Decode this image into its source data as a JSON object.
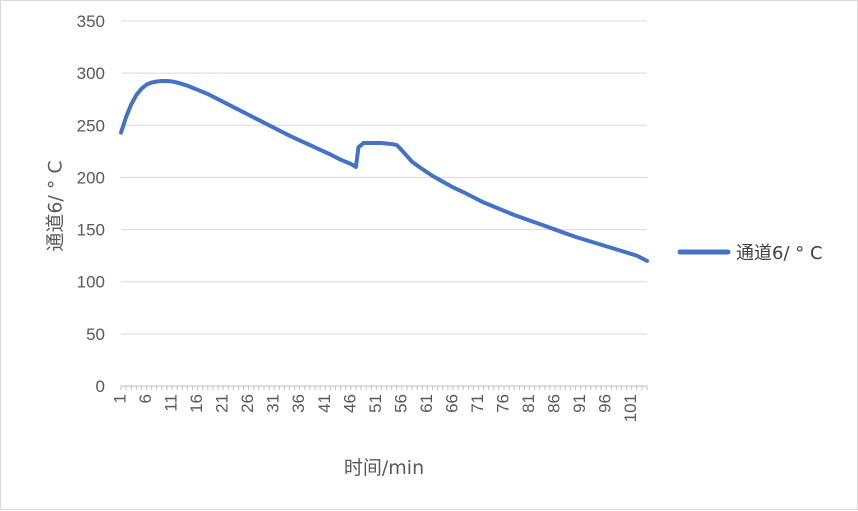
{
  "chart_data": {
    "type": "line",
    "xlabel": "时间/min",
    "ylabel": "通道6/ ° C",
    "ylim": [
      0,
      350
    ],
    "yticks": [
      0,
      50,
      100,
      150,
      200,
      250,
      300,
      350
    ],
    "xlim": [
      1,
      104
    ],
    "xticks": [
      1,
      6,
      11,
      16,
      21,
      26,
      31,
      36,
      41,
      46,
      51,
      56,
      61,
      66,
      71,
      76,
      81,
      86,
      91,
      96,
      101
    ],
    "grid": true,
    "legend_position": "right",
    "series": [
      {
        "name": "通道6/ ° C",
        "color": "#4472c4",
        "points": [
          [
            1,
            243
          ],
          [
            2,
            258
          ],
          [
            3,
            270
          ],
          [
            4,
            279
          ],
          [
            5,
            285
          ],
          [
            6,
            289
          ],
          [
            7,
            291
          ],
          [
            8,
            292
          ],
          [
            9,
            292.5
          ],
          [
            10,
            292.5
          ],
          [
            11,
            292
          ],
          [
            12,
            291
          ],
          [
            13,
            289.5
          ],
          [
            14,
            288
          ],
          [
            15,
            286
          ],
          [
            16,
            284
          ],
          [
            18,
            280
          ],
          [
            20,
            275
          ],
          [
            22,
            270
          ],
          [
            24,
            265
          ],
          [
            26,
            260
          ],
          [
            28,
            255
          ],
          [
            30,
            250
          ],
          [
            32,
            245
          ],
          [
            34,
            240
          ],
          [
            36,
            235.5
          ],
          [
            38,
            231
          ],
          [
            40,
            226.5
          ],
          [
            42,
            222
          ],
          [
            44,
            217
          ],
          [
            46,
            213
          ],
          [
            47,
            210
          ],
          [
            47.5,
            229
          ],
          [
            48.5,
            233
          ],
          [
            50,
            233
          ],
          [
            52,
            233
          ],
          [
            54,
            232
          ],
          [
            55,
            231
          ],
          [
            56,
            226
          ],
          [
            58,
            215
          ],
          [
            60,
            208
          ],
          [
            62,
            201.5
          ],
          [
            64,
            196
          ],
          [
            66,
            190.5
          ],
          [
            68,
            186
          ],
          [
            70,
            181
          ],
          [
            72,
            176
          ],
          [
            74,
            172
          ],
          [
            76,
            168
          ],
          [
            78,
            164
          ],
          [
            80,
            160.5
          ],
          [
            82,
            157
          ],
          [
            84,
            153.5
          ],
          [
            86,
            150
          ],
          [
            88,
            146.5
          ],
          [
            90,
            143
          ],
          [
            92,
            140
          ],
          [
            94,
            137
          ],
          [
            96,
            134
          ],
          [
            98,
            131
          ],
          [
            100,
            128
          ],
          [
            102,
            125
          ],
          [
            104,
            120
          ]
        ]
      }
    ]
  }
}
